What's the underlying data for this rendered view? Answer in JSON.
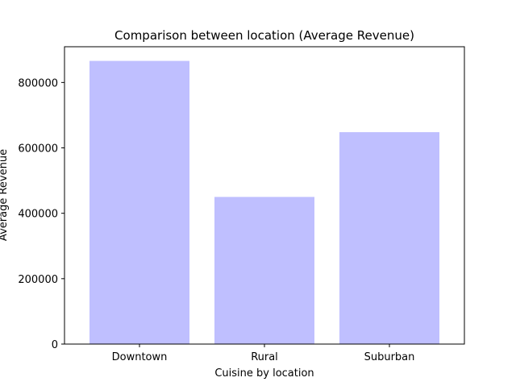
{
  "chart_data": {
    "type": "bar",
    "title": "Comparison between location (Average Revenue)",
    "xlabel": "Cuisine by location",
    "ylabel": "Average Revenue",
    "categories": [
      "Downtown",
      "Rural",
      "Suburban"
    ],
    "values": [
      866000,
      450000,
      648000
    ],
    "ylim": [
      0,
      909300
    ],
    "yticks": [
      0,
      200000,
      400000,
      600000,
      800000
    ],
    "ytick_labels": [
      "0",
      "200000",
      "400000",
      "600000",
      "800000"
    ],
    "bar_color": "#bfbfff",
    "grid": false,
    "legend": "none"
  }
}
